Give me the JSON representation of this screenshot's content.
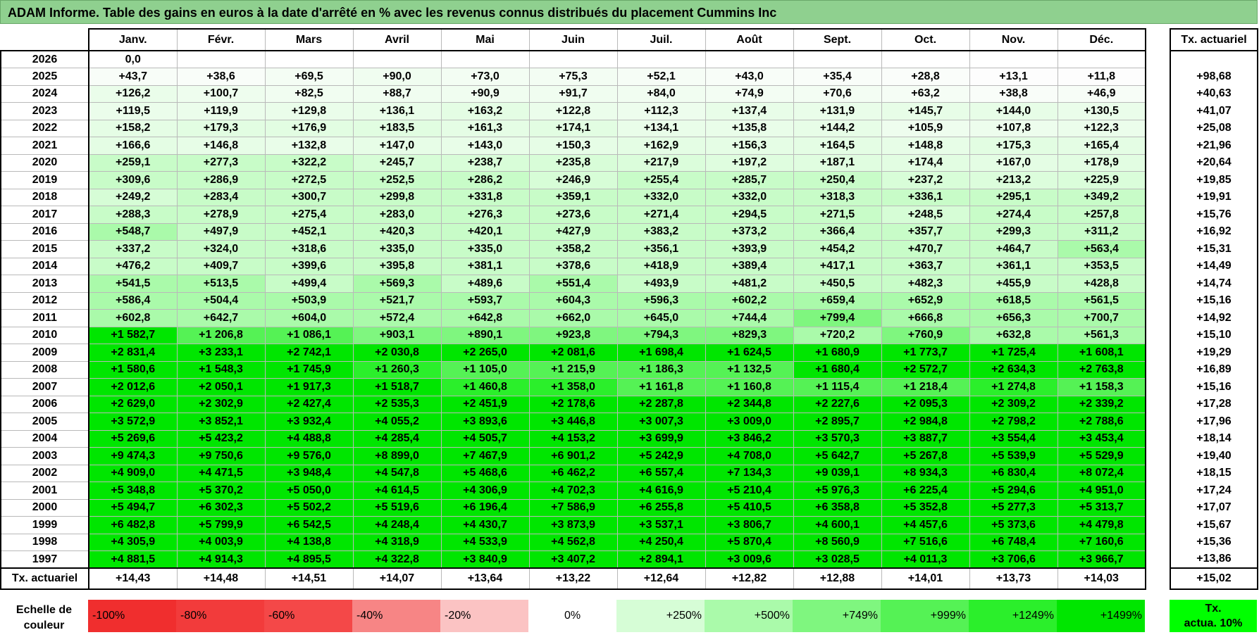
{
  "title": "ADAM Informe. Table des gains en euros à la date d'arrêté en % avec les revenus connus distribués du placement Cummins Inc",
  "months": [
    "Janv.",
    "Févr.",
    "Mars",
    "Avril",
    "Mai",
    "Juin",
    "Juil.",
    "Août",
    "Sept.",
    "Oct.",
    "Nov.",
    "Déc."
  ],
  "actuarial_header": "Tx. actuariel",
  "rows": [
    {
      "year": "2026",
      "values": [
        "0,0",
        "",
        "",
        "",
        "",
        "",
        "",
        "",
        "",
        "",
        "",
        ""
      ],
      "actuarial": ""
    },
    {
      "year": "2025",
      "values": [
        "+43,7",
        "+38,6",
        "+69,5",
        "+90,0",
        "+73,0",
        "+75,3",
        "+52,1",
        "+43,0",
        "+35,4",
        "+28,8",
        "+13,1",
        "+11,8"
      ],
      "actuarial": "+98,68"
    },
    {
      "year": "2024",
      "values": [
        "+126,2",
        "+100,7",
        "+82,5",
        "+88,7",
        "+90,9",
        "+91,7",
        "+84,0",
        "+74,9",
        "+70,6",
        "+63,2",
        "+38,8",
        "+46,9"
      ],
      "actuarial": "+40,63"
    },
    {
      "year": "2023",
      "values": [
        "+119,5",
        "+119,9",
        "+129,8",
        "+136,1",
        "+163,2",
        "+122,8",
        "+112,3",
        "+137,4",
        "+131,9",
        "+145,7",
        "+144,0",
        "+130,5"
      ],
      "actuarial": "+41,07"
    },
    {
      "year": "2022",
      "values": [
        "+158,2",
        "+179,3",
        "+176,9",
        "+183,5",
        "+161,3",
        "+174,1",
        "+134,1",
        "+135,8",
        "+144,2",
        "+105,9",
        "+107,8",
        "+122,3"
      ],
      "actuarial": "+25,08"
    },
    {
      "year": "2021",
      "values": [
        "+166,6",
        "+146,8",
        "+132,8",
        "+147,0",
        "+143,0",
        "+150,3",
        "+162,9",
        "+156,3",
        "+164,5",
        "+148,8",
        "+175,3",
        "+165,4"
      ],
      "actuarial": "+21,96"
    },
    {
      "year": "2020",
      "values": [
        "+259,1",
        "+277,3",
        "+322,2",
        "+245,7",
        "+238,7",
        "+235,8",
        "+217,9",
        "+197,2",
        "+187,1",
        "+174,4",
        "+167,0",
        "+178,9"
      ],
      "actuarial": "+20,64"
    },
    {
      "year": "2019",
      "values": [
        "+309,6",
        "+286,9",
        "+272,5",
        "+252,5",
        "+286,2",
        "+246,9",
        "+255,4",
        "+285,7",
        "+250,4",
        "+237,2",
        "+213,2",
        "+225,9"
      ],
      "actuarial": "+19,85"
    },
    {
      "year": "2018",
      "values": [
        "+249,2",
        "+283,4",
        "+300,7",
        "+299,8",
        "+331,8",
        "+359,1",
        "+332,0",
        "+332,0",
        "+318,3",
        "+336,1",
        "+295,1",
        "+349,2"
      ],
      "actuarial": "+19,91"
    },
    {
      "year": "2017",
      "values": [
        "+288,3",
        "+278,9",
        "+275,4",
        "+283,0",
        "+276,3",
        "+273,6",
        "+271,4",
        "+294,5",
        "+271,5",
        "+248,5",
        "+274,4",
        "+257,8"
      ],
      "actuarial": "+15,76"
    },
    {
      "year": "2016",
      "values": [
        "+548,7",
        "+497,9",
        "+452,1",
        "+420,3",
        "+420,1",
        "+427,9",
        "+383,2",
        "+373,2",
        "+366,4",
        "+357,7",
        "+299,3",
        "+311,2"
      ],
      "actuarial": "+16,92"
    },
    {
      "year": "2015",
      "values": [
        "+337,2",
        "+324,0",
        "+318,6",
        "+335,0",
        "+335,0",
        "+358,2",
        "+356,1",
        "+393,9",
        "+454,2",
        "+470,7",
        "+464,7",
        "+563,4"
      ],
      "actuarial": "+15,31"
    },
    {
      "year": "2014",
      "values": [
        "+476,2",
        "+409,7",
        "+399,6",
        "+395,8",
        "+381,1",
        "+378,6",
        "+418,9",
        "+389,4",
        "+417,1",
        "+363,7",
        "+361,1",
        "+353,5"
      ],
      "actuarial": "+14,49"
    },
    {
      "year": "2013",
      "values": [
        "+541,5",
        "+513,5",
        "+499,4",
        "+569,3",
        "+489,6",
        "+551,4",
        "+493,9",
        "+481,2",
        "+450,5",
        "+482,3",
        "+455,9",
        "+428,8"
      ],
      "actuarial": "+14,74"
    },
    {
      "year": "2012",
      "values": [
        "+586,4",
        "+504,4",
        "+503,9",
        "+521,7",
        "+593,7",
        "+604,3",
        "+596,3",
        "+602,2",
        "+659,4",
        "+652,9",
        "+618,5",
        "+561,5"
      ],
      "actuarial": "+15,16"
    },
    {
      "year": "2011",
      "values": [
        "+602,8",
        "+642,7",
        "+604,0",
        "+572,4",
        "+642,8",
        "+662,0",
        "+645,0",
        "+744,4",
        "+799,4",
        "+666,8",
        "+656,3",
        "+700,7"
      ],
      "actuarial": "+14,92"
    },
    {
      "year": "2010",
      "values": [
        "+1 582,7",
        "+1 206,8",
        "+1 086,1",
        "+903,1",
        "+890,1",
        "+923,8",
        "+794,3",
        "+829,3",
        "+720,2",
        "+760,9",
        "+632,8",
        "+561,3"
      ],
      "actuarial": "+15,10"
    },
    {
      "year": "2009",
      "values": [
        "+2 831,4",
        "+3 233,1",
        "+2 742,1",
        "+2 030,8",
        "+2 265,0",
        "+2 081,6",
        "+1 698,4",
        "+1 624,5",
        "+1 680,9",
        "+1 773,7",
        "+1 725,4",
        "+1 608,1"
      ],
      "actuarial": "+19,29"
    },
    {
      "year": "2008",
      "values": [
        "+1 580,6",
        "+1 548,3",
        "+1 745,9",
        "+1 260,3",
        "+1 105,0",
        "+1 215,9",
        "+1 186,3",
        "+1 132,5",
        "+1 680,4",
        "+2 572,7",
        "+2 634,3",
        "+2 763,8"
      ],
      "actuarial": "+16,89"
    },
    {
      "year": "2007",
      "values": [
        "+2 012,6",
        "+2 050,1",
        "+1 917,3",
        "+1 518,7",
        "+1 460,8",
        "+1 358,0",
        "+1 161,8",
        "+1 160,8",
        "+1 115,4",
        "+1 218,4",
        "+1 274,8",
        "+1 158,3"
      ],
      "actuarial": "+15,16"
    },
    {
      "year": "2006",
      "values": [
        "+2 629,0",
        "+2 302,9",
        "+2 427,4",
        "+2 535,3",
        "+2 451,9",
        "+2 178,6",
        "+2 287,8",
        "+2 344,8",
        "+2 227,6",
        "+2 095,3",
        "+2 309,2",
        "+2 339,2"
      ],
      "actuarial": "+17,28"
    },
    {
      "year": "2005",
      "values": [
        "+3 572,9",
        "+3 852,1",
        "+3 932,4",
        "+4 055,2",
        "+3 893,6",
        "+3 446,8",
        "+3 007,3",
        "+3 009,0",
        "+2 895,7",
        "+2 984,8",
        "+2 798,2",
        "+2 788,6"
      ],
      "actuarial": "+17,96"
    },
    {
      "year": "2004",
      "values": [
        "+5 269,6",
        "+5 423,2",
        "+4 488,8",
        "+4 285,4",
        "+4 505,7",
        "+4 153,2",
        "+3 699,9",
        "+3 846,2",
        "+3 570,3",
        "+3 887,7",
        "+3 554,4",
        "+3 453,4"
      ],
      "actuarial": "+18,14"
    },
    {
      "year": "2003",
      "values": [
        "+9 474,3",
        "+9 750,6",
        "+9 576,0",
        "+8 899,0",
        "+7 467,9",
        "+6 901,2",
        "+5 242,9",
        "+4 708,0",
        "+5 642,7",
        "+5 267,8",
        "+5 539,9",
        "+5 529,9"
      ],
      "actuarial": "+19,40"
    },
    {
      "year": "2002",
      "values": [
        "+4 909,0",
        "+4 471,5",
        "+3 948,4",
        "+4 547,8",
        "+5 468,6",
        "+6 462,2",
        "+6 557,4",
        "+7 134,3",
        "+9 039,1",
        "+8 934,3",
        "+6 830,4",
        "+8 072,4"
      ],
      "actuarial": "+18,15"
    },
    {
      "year": "2001",
      "values": [
        "+5 348,8",
        "+5 370,2",
        "+5 050,0",
        "+4 614,5",
        "+4 306,9",
        "+4 702,3",
        "+4 616,9",
        "+5 210,4",
        "+5 976,3",
        "+6 225,4",
        "+5 294,6",
        "+4 951,0"
      ],
      "actuarial": "+17,24"
    },
    {
      "year": "2000",
      "values": [
        "+5 494,7",
        "+6 302,3",
        "+5 502,2",
        "+5 519,6",
        "+6 196,4",
        "+7 586,9",
        "+6 255,8",
        "+5 410,5",
        "+6 358,8",
        "+5 352,8",
        "+5 277,3",
        "+5 313,7"
      ],
      "actuarial": "+17,07"
    },
    {
      "year": "1999",
      "values": [
        "+6 482,8",
        "+5 799,9",
        "+6 542,5",
        "+4 248,4",
        "+4 430,7",
        "+3 873,9",
        "+3 537,1",
        "+3 806,7",
        "+4 600,1",
        "+4 457,6",
        "+5 373,6",
        "+4 479,8"
      ],
      "actuarial": "+15,67"
    },
    {
      "year": "1998",
      "values": [
        "+4 305,9",
        "+4 003,9",
        "+4 138,8",
        "+4 318,9",
        "+4 533,9",
        "+4 562,8",
        "+4 250,4",
        "+5 870,4",
        "+8 560,9",
        "+7 516,6",
        "+6 748,4",
        "+7 160,6"
      ],
      "actuarial": "+15,36"
    },
    {
      "year": "1997",
      "values": [
        "+4 881,5",
        "+4 914,3",
        "+4 895,5",
        "+4 322,8",
        "+3 840,9",
        "+3 407,2",
        "+2 894,1",
        "+3 009,6",
        "+3 028,5",
        "+4 011,3",
        "+3 706,6",
        "+3 966,7"
      ],
      "actuarial": "+13,86"
    }
  ],
  "footer": {
    "label": "Tx. actuariel",
    "values": [
      "+14,43",
      "+14,48",
      "+14,51",
      "+14,07",
      "+13,64",
      "+13,22",
      "+12,64",
      "+12,82",
      "+12,88",
      "+14,01",
      "+13,73",
      "+14,03"
    ],
    "actuarial": "+15,02"
  },
  "scale": {
    "label_line1": "Echelle de",
    "label_line2": "couleur",
    "items": [
      {
        "text": "-100%",
        "color": "#f02e2e",
        "align": "l"
      },
      {
        "text": "-80%",
        "color": "#f23b3b",
        "align": "l"
      },
      {
        "text": "-60%",
        "color": "#f44848",
        "align": "l"
      },
      {
        "text": "-40%",
        "color": "#f78585",
        "align": "l"
      },
      {
        "text": "-20%",
        "color": "#fbc3c3",
        "align": "l"
      },
      {
        "text": "0%",
        "color": "#ffffff",
        "align": "c"
      },
      {
        "text": "+250%",
        "color": "#d6fdd6",
        "align": "r"
      },
      {
        "text": "+500%",
        "color": "#aafaaa",
        "align": "r"
      },
      {
        "text": "+749%",
        "color": "#7ff67f",
        "align": "r"
      },
      {
        "text": "+999%",
        "color": "#55f255",
        "align": "r"
      },
      {
        "text": "+1249%",
        "color": "#2bef2b",
        "align": "r"
      },
      {
        "text": "+1499%",
        "color": "#00e600",
        "align": "r"
      }
    ],
    "tx10_line1": "Tx.",
    "tx10_line2": "actua. 10%",
    "tx10_color": "#00ff00"
  }
}
